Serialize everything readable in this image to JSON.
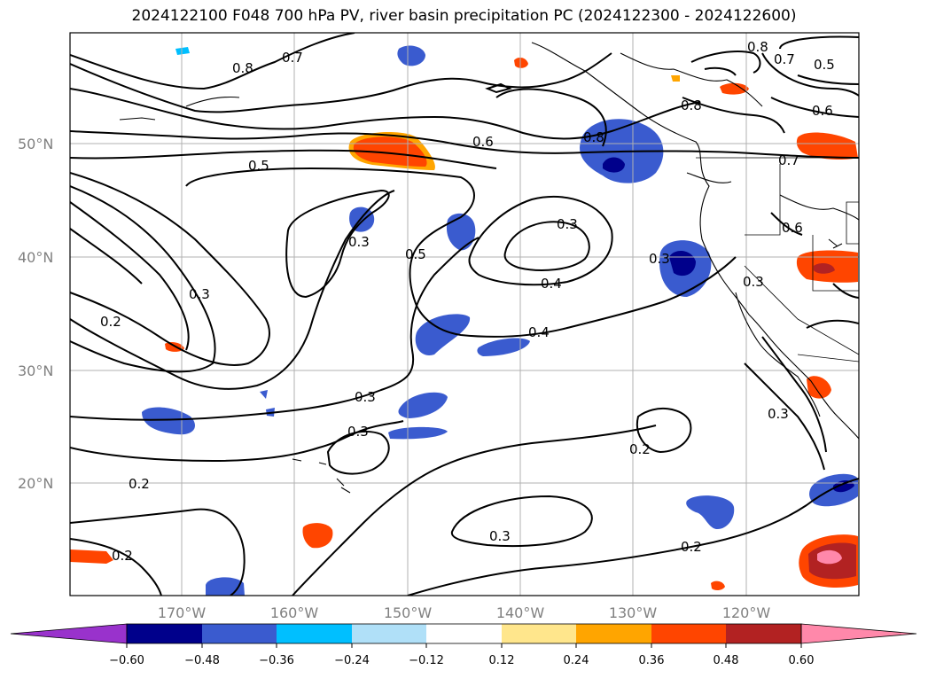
{
  "title": "2024122100 F048 700 hPa PV, river basin precipitation PC (2024122300 - 2024122600)",
  "map": {
    "lon_labels": [
      "170°W",
      "160°W",
      "150°W",
      "140°W",
      "130°W",
      "120°W"
    ],
    "lat_labels": [
      "50°N",
      "40°N",
      "30°N",
      "20°N"
    ],
    "contour_labels": [
      "0.8",
      "0.7",
      "0.8",
      "0.7",
      "0.5",
      "0.8",
      "0.6",
      "0.8",
      "0.5",
      "0.6",
      "0.7",
      "0.3",
      "0.6",
      "0.3",
      "0.5",
      "0.3",
      "0.4",
      "0.3",
      "0.2",
      "0.3",
      "0.4",
      "0.3",
      "0.3",
      "0.2",
      "0.3",
      "0.2",
      "0.3",
      "0.2",
      "0.2"
    ],
    "colorbar": {
      "tick_labels": [
        "−0.60",
        "−0.48",
        "−0.36",
        "−0.24",
        "−0.12",
        "0.12",
        "0.24",
        "0.36",
        "0.48",
        "0.60"
      ],
      "colors": [
        "#9932cc",
        "#00008b",
        "#3a5bcf",
        "#00bfff",
        "#b0e0f8",
        "#ffffff",
        "#ffe68c",
        "#ffa500",
        "#ff4500",
        "#b22222",
        "#ff88aa"
      ]
    }
  }
}
